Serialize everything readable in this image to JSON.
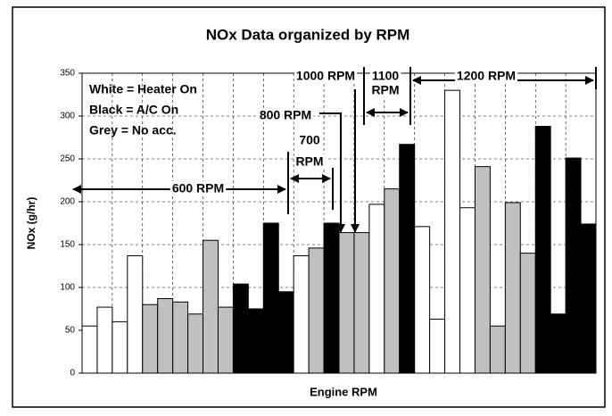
{
  "chart_data": {
    "type": "bar",
    "title": "NOx Data organized by RPM",
    "x_label": "Engine RPM",
    "y_label": "NOx (g/hr)",
    "values": [
      55,
      77,
      60,
      137,
      80,
      87,
      83,
      69,
      155,
      77,
      104,
      75,
      175,
      95,
      137,
      146,
      175,
      164,
      164,
      197,
      215,
      267,
      171,
      63,
      330,
      193,
      241,
      55,
      199,
      140,
      288,
      69,
      251,
      174
    ],
    "colors": [
      "#ffffff",
      "#ffffff",
      "#ffffff",
      "#ffffff",
      "#c0c0c0",
      "#c0c0c0",
      "#c0c0c0",
      "#c0c0c0",
      "#c0c0c0",
      "#c0c0c0",
      "#000000",
      "#000000",
      "#000000",
      "#000000",
      "#ffffff",
      "#c0c0c0",
      "#000000",
      "#c0c0c0",
      "#c0c0c0",
      "#ffffff",
      "#c0c0c0",
      "#000000",
      "#ffffff",
      "#ffffff",
      "#ffffff",
      "#ffffff",
      "#c0c0c0",
      "#c0c0c0",
      "#c0c0c0",
      "#c0c0c0",
      "#000000",
      "#000000",
      "#000000",
      "#000000"
    ],
    "ylim": [
      0,
      350
    ],
    "yticks": [
      0,
      50,
      100,
      150,
      200,
      250,
      300,
      350
    ],
    "grid": true,
    "legend_notes": [
      "White = Heater On",
      "Black = A/C On",
      "Grey = No acc."
    ],
    "annotations": [
      {
        "lines": [
          "600 RPM"
        ]
      },
      {
        "lines": [
          "700",
          "RPM"
        ]
      },
      {
        "lines": [
          "800 RPM"
        ]
      },
      {
        "lines": [
          "1000 RPM"
        ]
      },
      {
        "lines": [
          "1100",
          "RPM"
        ]
      },
      {
        "lines": [
          "1200 RPM"
        ]
      }
    ]
  }
}
